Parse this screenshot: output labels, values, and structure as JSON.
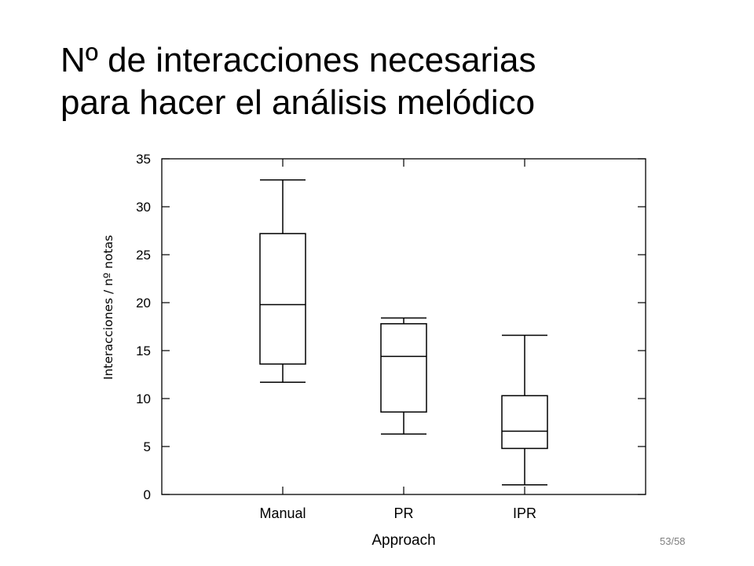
{
  "slide": {
    "title_line1": "Nº de interacciones necesarias",
    "title_line2": "para hacer el análisis melódico",
    "page_number": "53/58"
  },
  "chart_data": {
    "type": "box",
    "title": "",
    "xlabel": "Approach",
    "ylabel": "Interacciones / nº notas",
    "ylim": [
      0,
      35
    ],
    "yticks": [
      0,
      5,
      10,
      15,
      20,
      25,
      30,
      35
    ],
    "categories": [
      "Manual",
      "PR",
      "IPR"
    ],
    "boxes": [
      {
        "category": "Manual",
        "whisker_low": 11.7,
        "q1": 13.6,
        "median": 19.8,
        "q3": 27.2,
        "whisker_high": 32.8
      },
      {
        "category": "PR",
        "whisker_low": 6.3,
        "q1": 8.6,
        "median": 14.4,
        "q3": 17.8,
        "whisker_high": 18.4
      },
      {
        "category": "IPR",
        "whisker_low": 1.0,
        "q1": 4.8,
        "median": 6.6,
        "q3": 10.3,
        "whisker_high": 16.6
      }
    ],
    "grid": false,
    "legend": "none",
    "color": "#000000"
  }
}
